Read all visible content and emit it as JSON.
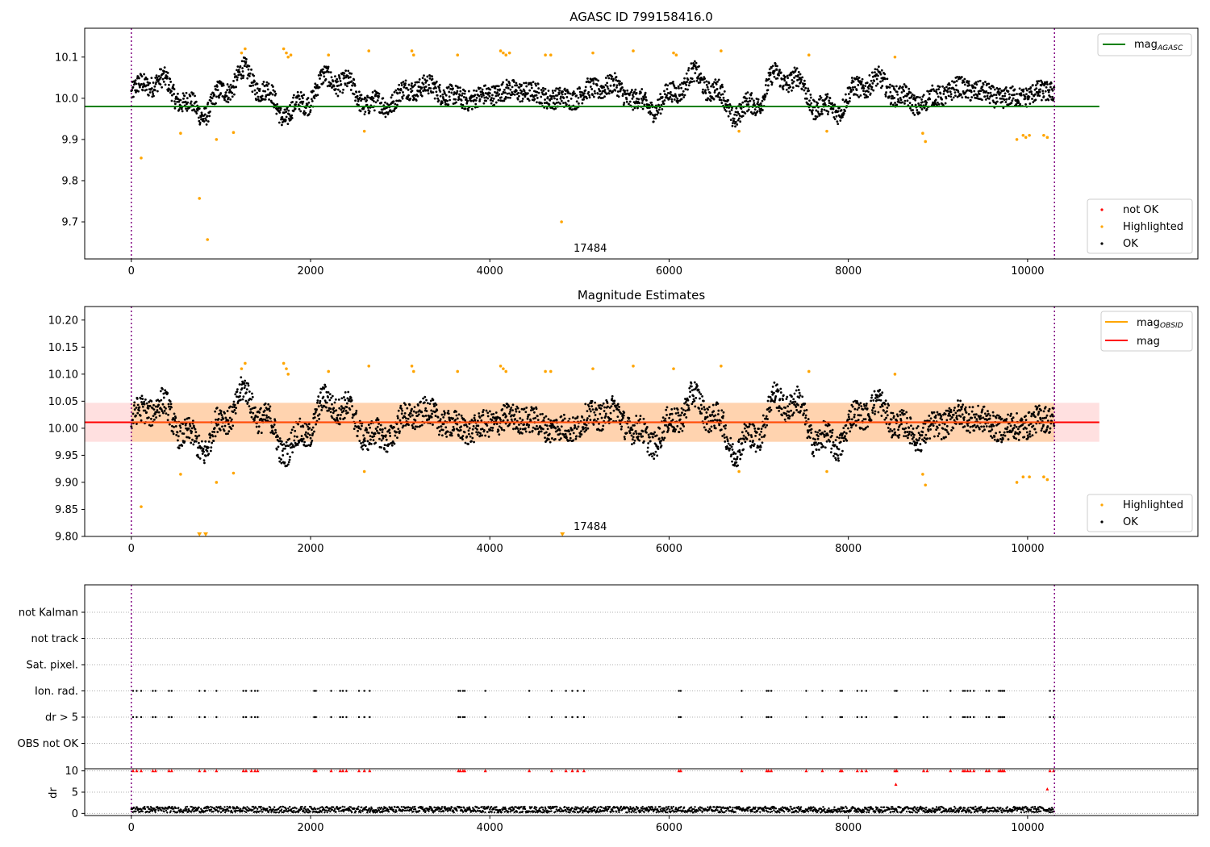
{
  "chart_data": [
    {
      "type": "scatter",
      "title": "AGASC ID 799158416.0",
      "xlim": [
        -520,
        11900
      ],
      "ylim": [
        9.61,
        10.17
      ],
      "xticks": [
        0,
        2000,
        4000,
        6000,
        8000,
        10000
      ],
      "yticks": [
        9.7,
        9.8,
        9.9,
        10.0,
        10.1
      ],
      "vlines": [
        0,
        10300
      ],
      "obsid_label": "17484",
      "obsid_label_x": 5000,
      "hline": {
        "name": "mag_AGASC",
        "value": 9.98,
        "x_end": 10800,
        "color": "#008000"
      },
      "legend_top": [
        {
          "label": "mag",
          "subscript": "AGASC",
          "color": "#008000",
          "kind": "line"
        }
      ],
      "legend_bottom": [
        {
          "label": "not OK",
          "color": "#ff0000",
          "kind": "dot"
        },
        {
          "label": "Highlighted",
          "color": "#ffa500",
          "kind": "dot"
        },
        {
          "label": "OK",
          "color": "#000000",
          "kind": "dot"
        }
      ],
      "series": [
        {
          "name": "OK",
          "color": "#000000",
          "x_range": [
            0,
            10300
          ],
          "baseline": 10.01,
          "y_min": 9.93,
          "y_max": 10.1
        },
        {
          "name": "Highlighted",
          "color": "#ffa500",
          "points": [
            [
              110,
              9.855
            ],
            [
              550,
              9.915
            ],
            [
              760,
              9.757
            ],
            [
              850,
              9.657
            ],
            [
              950,
              9.9
            ],
            [
              1140,
              9.917
            ],
            [
              1230,
              10.11
            ],
            [
              1270,
              10.12
            ],
            [
              1700,
              10.12
            ],
            [
              1730,
              10.11
            ],
            [
              1750,
              10.1
            ],
            [
              1780,
              10.105
            ],
            [
              2200,
              10.105
            ],
            [
              2600,
              9.92
            ],
            [
              2650,
              10.115
            ],
            [
              3130,
              10.115
            ],
            [
              3150,
              10.105
            ],
            [
              3640,
              10.105
            ],
            [
              4120,
              10.115
            ],
            [
              4150,
              10.11
            ],
            [
              4180,
              10.105
            ],
            [
              4220,
              10.11
            ],
            [
              4620,
              10.105
            ],
            [
              4680,
              10.105
            ],
            [
              4800,
              9.7
            ],
            [
              5150,
              10.11
            ],
            [
              5600,
              10.115
            ],
            [
              6050,
              10.11
            ],
            [
              6080,
              10.105
            ],
            [
              6580,
              10.115
            ],
            [
              6780,
              9.92
            ],
            [
              7560,
              10.105
            ],
            [
              7760,
              9.92
            ],
            [
              8520,
              10.1
            ],
            [
              8830,
              9.915
            ],
            [
              8860,
              9.895
            ],
            [
              9880,
              9.9
            ],
            [
              9950,
              9.91
            ],
            [
              9980,
              9.905
            ],
            [
              10020,
              9.91
            ],
            [
              10180,
              9.91
            ],
            [
              10220,
              9.905
            ]
          ]
        }
      ]
    },
    {
      "type": "scatter",
      "title": "Magnitude Estimates",
      "xlim": [
        -520,
        11900
      ],
      "ylim": [
        9.8,
        10.225
      ],
      "xticks": [
        0,
        2000,
        4000,
        6000,
        8000,
        10000
      ],
      "yticks": [
        9.8,
        9.85,
        9.9,
        9.95,
        10.0,
        10.05,
        10.1,
        10.15,
        10.2
      ],
      "vlines": [
        0,
        10300
      ],
      "obsid_label": "17484",
      "obsid_label_x": 5000,
      "band": {
        "y_low": 9.975,
        "y_high": 10.047,
        "x_end": 10800
      },
      "obsid_band": {
        "y_low": 9.975,
        "y_high": 10.047,
        "x_end": 10300
      },
      "hline": {
        "name": "mag",
        "value": 10.011,
        "x_end": 10800,
        "color": "#ff0000"
      },
      "obsid_line": {
        "name": "mag_OBSID",
        "value": 10.011,
        "x_end": 10300,
        "color": "#ffa500"
      },
      "legend_top": [
        {
          "label": "mag",
          "subscript": "OBSID",
          "color": "#ffa500",
          "kind": "line"
        },
        {
          "label": "mag",
          "subscript": "",
          "color": "#ff0000",
          "kind": "line"
        }
      ],
      "legend_bottom": [
        {
          "label": "Highlighted",
          "color": "#ffa500",
          "kind": "dot"
        },
        {
          "label": "OK",
          "color": "#000000",
          "kind": "dot"
        }
      ],
      "series": [
        {
          "name": "OK",
          "color": "#000000",
          "x_range": [
            0,
            10300
          ],
          "baseline": 10.01,
          "y_min": 9.93,
          "y_max": 10.1
        },
        {
          "name": "Highlighted",
          "color": "#ffa500",
          "points": [
            [
              110,
              9.855
            ],
            [
              550,
              9.915
            ],
            [
              950,
              9.9
            ],
            [
              1140,
              9.917
            ],
            [
              1230,
              10.11
            ],
            [
              1270,
              10.12
            ],
            [
              1700,
              10.12
            ],
            [
              1730,
              10.11
            ],
            [
              1750,
              10.1
            ],
            [
              2200,
              10.105
            ],
            [
              2600,
              9.92
            ],
            [
              2650,
              10.115
            ],
            [
              3130,
              10.115
            ],
            [
              3150,
              10.105
            ],
            [
              3640,
              10.105
            ],
            [
              4120,
              10.115
            ],
            [
              4150,
              10.11
            ],
            [
              4180,
              10.105
            ],
            [
              4620,
              10.105
            ],
            [
              4680,
              10.105
            ],
            [
              5150,
              10.11
            ],
            [
              5600,
              10.115
            ],
            [
              6050,
              10.11
            ],
            [
              6580,
              10.115
            ],
            [
              6780,
              9.92
            ],
            [
              7560,
              10.105
            ],
            [
              7760,
              9.92
            ],
            [
              8520,
              10.1
            ],
            [
              8830,
              9.915
            ],
            [
              8860,
              9.895
            ],
            [
              9880,
              9.9
            ],
            [
              9950,
              9.91
            ],
            [
              10020,
              9.91
            ],
            [
              10180,
              9.91
            ],
            [
              10220,
              9.905
            ]
          ]
        },
        {
          "name": "Highlighted (below axis)",
          "color": "#ffa500",
          "marker": "triangle-down",
          "points": [
            [
              760,
              9.8
            ],
            [
              830,
              9.8
            ],
            [
              4810,
              9.8
            ]
          ]
        }
      ]
    },
    {
      "type": "scatter",
      "title": "",
      "xlim": [
        -520,
        11900
      ],
      "xticks": [
        0,
        2000,
        4000,
        6000,
        8000,
        10000
      ],
      "vlines": [
        0,
        10300
      ],
      "flag_rows": [
        "not Kalman",
        "not track",
        "Sat. pixel.",
        "Ion. rad.",
        "dr > 5",
        "OBS not OK"
      ],
      "flag_points": {
        "Ion. rad.": [
          20,
          60,
          110,
          240,
          270,
          420,
          450,
          760,
          820,
          950,
          1250,
          1280,
          1340,
          1380,
          1410,
          2040,
          2060,
          2230,
          2330,
          2360,
          2400,
          2540,
          2600,
          2660,
          3650,
          3670,
          3700,
          3720,
          3950,
          4440,
          4690,
          4850,
          4920,
          4980,
          5050,
          6110,
          6130,
          6810,
          7090,
          7110,
          7140,
          7530,
          7710,
          7910,
          7930,
          8100,
          8150,
          8200,
          8520,
          8540,
          8840,
          8880,
          9140,
          9280,
          9300,
          9330,
          9360,
          9400,
          9540,
          9570,
          9680,
          9700,
          9720,
          9740,
          10250,
          10290
        ],
        "dr > 5": [
          20,
          60,
          110,
          240,
          270,
          420,
          450,
          760,
          820,
          950,
          1250,
          1280,
          1340,
          1380,
          1410,
          2040,
          2060,
          2230,
          2330,
          2360,
          2400,
          2540,
          2600,
          2660,
          3650,
          3670,
          3700,
          3720,
          3950,
          4440,
          4690,
          4850,
          4920,
          4980,
          5050,
          6110,
          6130,
          6810,
          7090,
          7110,
          7140,
          7530,
          7710,
          7910,
          7930,
          8100,
          8150,
          8200,
          8520,
          8540,
          8840,
          8880,
          9140,
          9280,
          9300,
          9330,
          9360,
          9400,
          9540,
          9570,
          9680,
          9700,
          9720,
          9740,
          10250,
          10290
        ]
      },
      "dr_panel": {
        "ylabel": "dr",
        "ylim": [
          -0.5,
          10.5
        ],
        "yticks": [
          0,
          5,
          10
        ],
        "red_points": [
          [
            20,
            10
          ],
          [
            60,
            10
          ],
          [
            110,
            10
          ],
          [
            240,
            10
          ],
          [
            270,
            10
          ],
          [
            420,
            10
          ],
          [
            450,
            10
          ],
          [
            760,
            10
          ],
          [
            820,
            10
          ],
          [
            950,
            10
          ],
          [
            1250,
            10
          ],
          [
            1280,
            10
          ],
          [
            1340,
            10
          ],
          [
            1380,
            10
          ],
          [
            1410,
            10
          ],
          [
            2040,
            10
          ],
          [
            2060,
            10
          ],
          [
            2230,
            10
          ],
          [
            2330,
            10
          ],
          [
            2360,
            10
          ],
          [
            2400,
            10
          ],
          [
            2540,
            10
          ],
          [
            2600,
            10
          ],
          [
            2660,
            10
          ],
          [
            3650,
            10
          ],
          [
            3670,
            10
          ],
          [
            3700,
            10
          ],
          [
            3720,
            10
          ],
          [
            3950,
            10
          ],
          [
            4440,
            10
          ],
          [
            4690,
            10
          ],
          [
            4850,
            10
          ],
          [
            4920,
            10
          ],
          [
            4980,
            10
          ],
          [
            5050,
            10
          ],
          [
            6110,
            10
          ],
          [
            6130,
            10
          ],
          [
            6810,
            10
          ],
          [
            7090,
            10
          ],
          [
            7110,
            10
          ],
          [
            7140,
            10
          ],
          [
            7530,
            10
          ],
          [
            7710,
            10
          ],
          [
            7910,
            10
          ],
          [
            7930,
            10
          ],
          [
            8100,
            10
          ],
          [
            8150,
            10
          ],
          [
            8200,
            10
          ],
          [
            8520,
            10
          ],
          [
            8530,
            6.8
          ],
          [
            8540,
            10
          ],
          [
            8840,
            10
          ],
          [
            8880,
            10
          ],
          [
            9140,
            10
          ],
          [
            9280,
            10
          ],
          [
            9300,
            10
          ],
          [
            9330,
            10
          ],
          [
            9360,
            10
          ],
          [
            9400,
            10
          ],
          [
            9540,
            10
          ],
          [
            9570,
            10
          ],
          [
            9680,
            10
          ],
          [
            9700,
            10
          ],
          [
            9720,
            10
          ],
          [
            9740,
            10
          ],
          [
            10220,
            5.7
          ],
          [
            10250,
            10
          ],
          [
            10290,
            10
          ]
        ],
        "black_band": {
          "y_low": 0.2,
          "y_high": 1.6
        }
      }
    }
  ]
}
